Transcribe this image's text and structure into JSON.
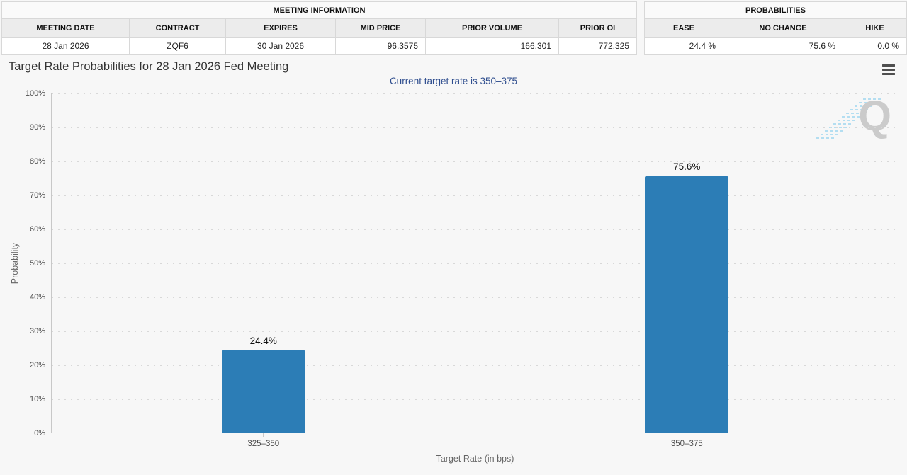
{
  "meeting_info": {
    "title": "MEETING INFORMATION",
    "columns": [
      "MEETING DATE",
      "CONTRACT",
      "EXPIRES",
      "MID PRICE",
      "PRIOR VOLUME",
      "PRIOR OI"
    ],
    "values": [
      "28 Jan 2026",
      "ZQF6",
      "30 Jan 2026",
      "96.3575",
      "166,301",
      "772,325"
    ]
  },
  "probabilities": {
    "title": "PROBABILITIES",
    "columns": [
      "EASE",
      "NO CHANGE",
      "HIKE"
    ],
    "values": [
      "24.4 %",
      "75.6 %",
      "0.0 %"
    ]
  },
  "chart": {
    "title": "Target Rate Probabilities for 28 Jan 2026 Fed Meeting",
    "subtitle": "Current target rate is 350–375",
    "menu_icon": "hamburger-export-menu",
    "watermark_letter": "Q"
  },
  "chart_data": {
    "type": "bar",
    "title": "Target Rate Probabilities for 28 Jan 2026 Fed Meeting",
    "subtitle": "Current target rate is 350–375",
    "categories": [
      "325–350",
      "350–375"
    ],
    "values": [
      24.4,
      75.6
    ],
    "value_labels": [
      "24.4%",
      "75.6%"
    ],
    "xlabel": "Target Rate (in bps)",
    "ylabel": "Probability",
    "ylim": [
      0,
      100
    ],
    "ytick_step": 10,
    "ytick_labels": [
      "0%",
      "10%",
      "20%",
      "30%",
      "40%",
      "50%",
      "60%",
      "70%",
      "80%",
      "90%",
      "100%"
    ],
    "grid": "dotted-horizontal",
    "legend": "none"
  },
  "colors": {
    "background": "#f7f7f7",
    "bar": "#2c7db6",
    "subtitle_text": "#2e4d8e",
    "grid": "#d8d8d8",
    "axis": "#c8c8c8",
    "watermark_q": "#cbcbcb",
    "watermark_stripes": "#a9daf1"
  }
}
